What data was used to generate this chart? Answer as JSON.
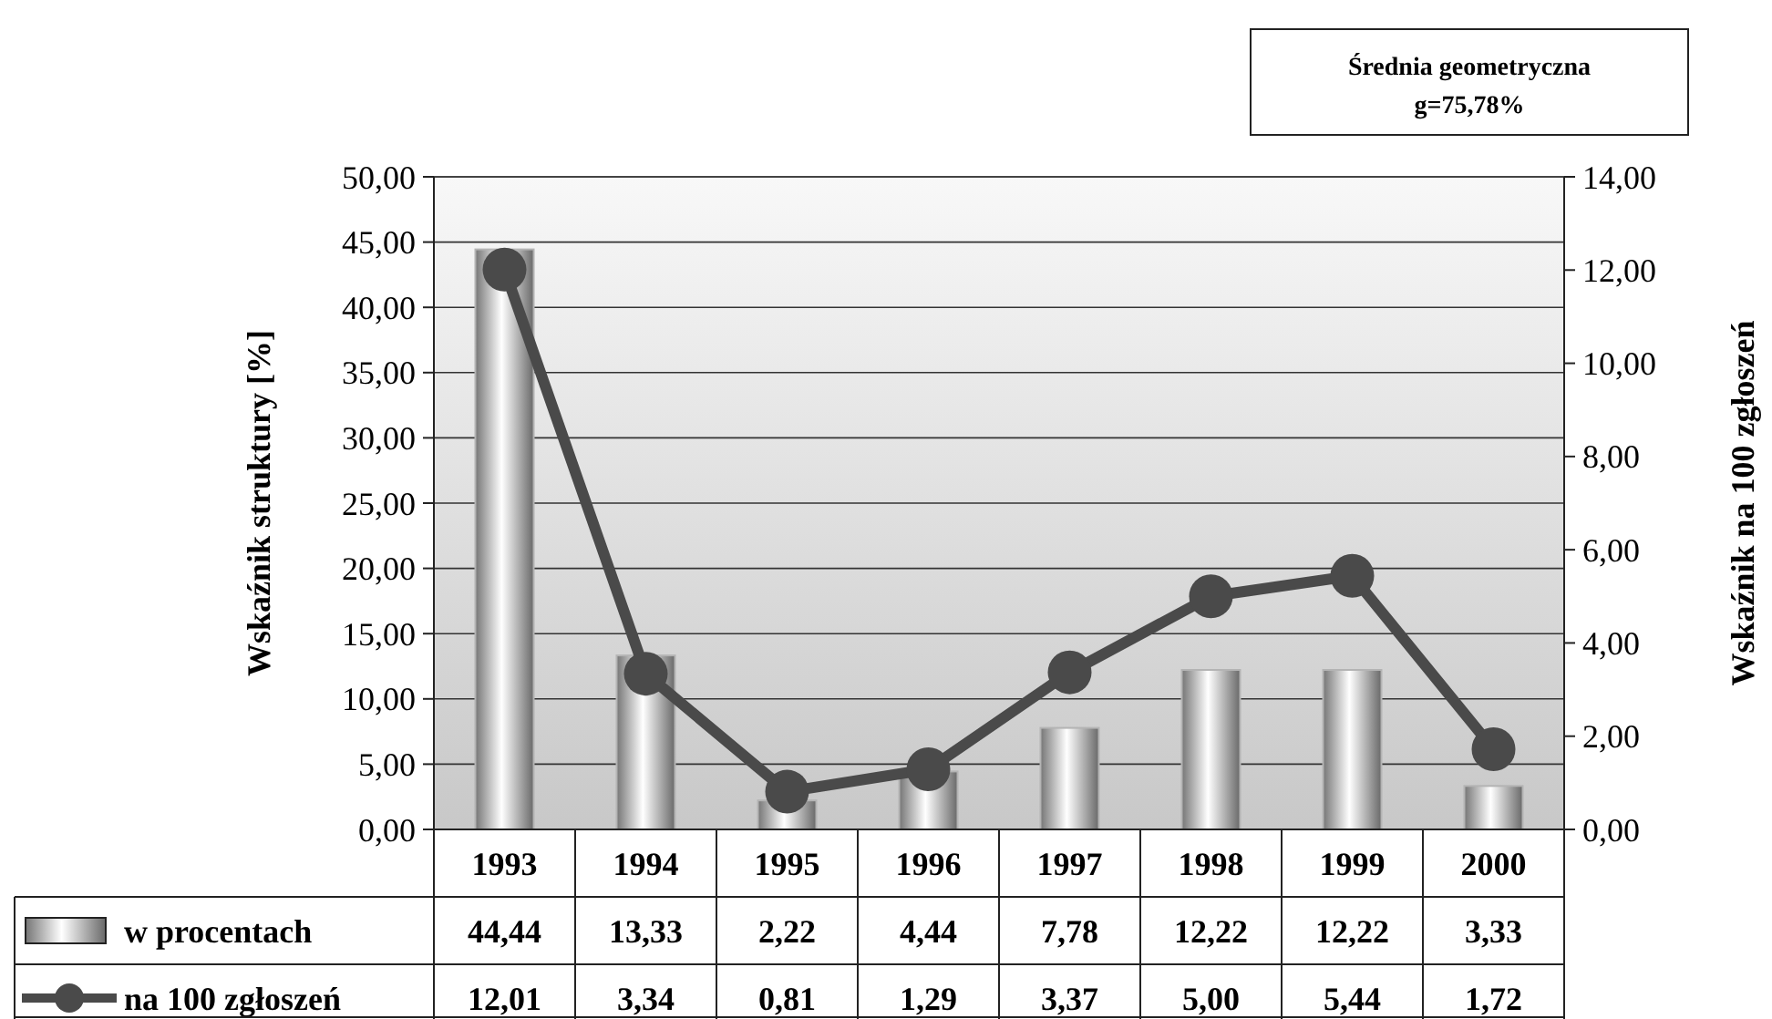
{
  "chart_data": {
    "type": "bar",
    "categories": [
      "1993",
      "1994",
      "1995",
      "1996",
      "1997",
      "1998",
      "1999",
      "2000"
    ],
    "series": [
      {
        "name": "w procentach",
        "color": "#b4b4b4",
        "values": [
          44.44,
          13.33,
          2.22,
          4.44,
          7.78,
          12.22,
          12.22,
          3.33
        ],
        "value_labels": [
          "44,44",
          "13,33",
          "2,22",
          "4,44",
          "7,78",
          "12,22",
          "12,22",
          "3,33"
        ]
      },
      {
        "name": "na 100 zgłoszeń",
        "type": "line",
        "axis": "y2",
        "color": "#4a4a4a",
        "marker": "circle",
        "line_style": "solid",
        "values": [
          12.01,
          3.34,
          0.81,
          1.29,
          3.37,
          5.0,
          5.44,
          1.72
        ],
        "value_labels": [
          "12,01",
          "3,34",
          "0,81",
          "1,29",
          "3,37",
          "5,00",
          "5,44",
          "1,72"
        ]
      }
    ],
    "ylabel": "Wskaźnik struktury [%]",
    "y2label": "Wskaźnik na 100 zgłoszeń",
    "ylim": [
      0,
      50
    ],
    "yticks": [
      {
        "value": 0,
        "label": "0,00"
      },
      {
        "value": 5,
        "label": "5,00"
      },
      {
        "value": 10,
        "label": "10,00"
      },
      {
        "value": 15,
        "label": "15,00"
      },
      {
        "value": 20,
        "label": "20,00"
      },
      {
        "value": 25,
        "label": "25,00"
      },
      {
        "value": 30,
        "label": "30,00"
      },
      {
        "value": 35,
        "label": "35,00"
      },
      {
        "value": 40,
        "label": "40,00"
      },
      {
        "value": 45,
        "label": "45,00"
      },
      {
        "value": 50,
        "label": "50,00"
      }
    ],
    "y2lim": [
      0,
      14
    ],
    "y2ticks": [
      {
        "value": 0,
        "label": "0,00"
      },
      {
        "value": 2,
        "label": "2,00"
      },
      {
        "value": 4,
        "label": "4,00"
      },
      {
        "value": 6,
        "label": "6,00"
      },
      {
        "value": 8,
        "label": "8,00"
      },
      {
        "value": 10,
        "label": "10,00"
      },
      {
        "value": 12,
        "label": "12,00"
      },
      {
        "value": 14,
        "label": "14,00"
      }
    ],
    "grid": "y",
    "legend": "bottom",
    "annotations": [
      "Średnia geometryczna",
      "g=75,78%"
    ]
  }
}
